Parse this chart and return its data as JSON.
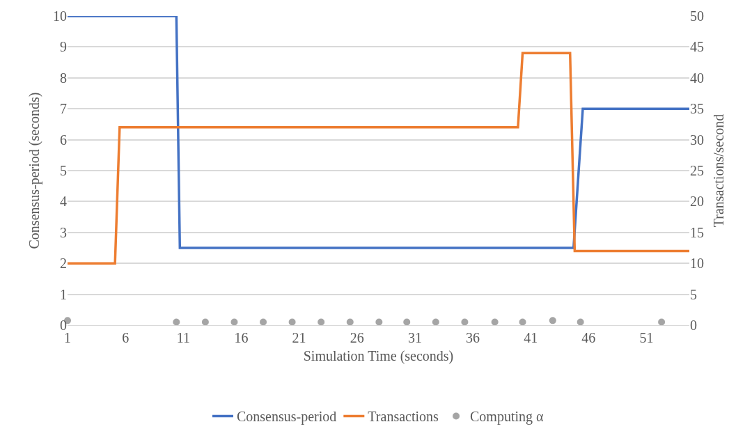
{
  "chart_data": {
    "type": "line",
    "xlabel": "Simulation Time (seconds)",
    "ylabel": "Consensus-period (seconds)",
    "y2label": "Transactions/second",
    "xlim": [
      1,
      54.7
    ],
    "xticks": [
      1,
      6,
      11,
      16,
      21,
      26,
      31,
      36,
      41,
      46,
      51
    ],
    "ylim": [
      0,
      10
    ],
    "yticks": [
      0,
      1,
      2,
      3,
      4,
      5,
      6,
      7,
      8,
      9,
      10
    ],
    "y2lim": [
      0,
      50
    ],
    "y2ticks": [
      0,
      5,
      10,
      15,
      20,
      25,
      30,
      35,
      40,
      45,
      50
    ],
    "grid": "y",
    "legend": "bottom",
    "series": [
      {
        "name": "Consensus-period",
        "color": "#4472c4",
        "marker": "none",
        "x": [
          1,
          10.4,
          10.7,
          44.7,
          45.5,
          54.7
        ],
        "values": [
          10,
          10,
          2.5,
          2.5,
          7,
          7
        ]
      },
      {
        "name": "Transactions",
        "axis": "y2",
        "color": "#ed7d31",
        "marker": "none",
        "x": [
          1,
          5.1,
          5.5,
          39.9,
          40.3,
          44.4,
          44.8,
          54.7
        ],
        "values": [
          10,
          10,
          32,
          32,
          44,
          44,
          12,
          12
        ]
      },
      {
        "name": "Computing α",
        "type": "scatter",
        "color": "#a5a5a5",
        "marker": "circle",
        "x": [
          1,
          10.4,
          12.9,
          15.4,
          17.9,
          20.4,
          22.9,
          25.4,
          27.9,
          30.3,
          32.8,
          35.3,
          37.9,
          40.3,
          42.9,
          45.3,
          52.3
        ],
        "values": [
          0.15,
          0.1,
          0.1,
          0.1,
          0.1,
          0.1,
          0.1,
          0.1,
          0.1,
          0.1,
          0.1,
          0.1,
          0.1,
          0.1,
          0.15,
          0.1,
          0.1
        ]
      }
    ]
  }
}
